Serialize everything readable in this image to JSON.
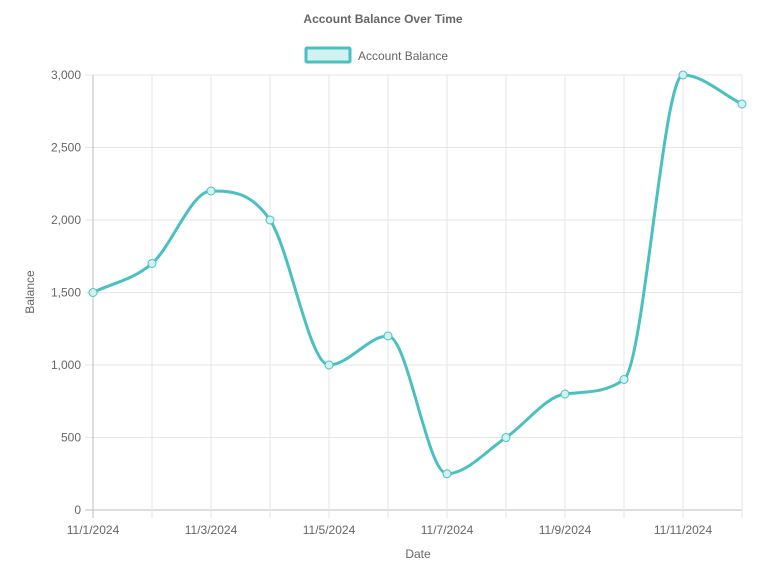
{
  "chart_data": {
    "type": "line",
    "title": "Account Balance Over Time",
    "xlabel": "Date",
    "ylabel": "Balance",
    "x": [
      "2024-11-01",
      "2024-11-02",
      "2024-11-03",
      "2024-11-04",
      "2024-11-05",
      "2024-11-06",
      "2024-11-07",
      "2024-11-08",
      "2024-11-09",
      "2024-11-10",
      "2024-11-11",
      "2024-11-12"
    ],
    "x_tick_labels": [
      "11/1/2024",
      "11/3/2024",
      "11/5/2024",
      "11/7/2024",
      "11/9/2024",
      "11/11/2024"
    ],
    "ylim": [
      0,
      3000
    ],
    "y_ticks": [
      0,
      500,
      1000,
      1500,
      2000,
      2500,
      3000
    ],
    "y_tick_labels": [
      "0",
      "500",
      "1,000",
      "1,500",
      "2,000",
      "2,500",
      "3,000"
    ],
    "grid": true,
    "legend_position": "top",
    "series": [
      {
        "name": "Account Balance",
        "values": [
          1500,
          1700,
          2200,
          2000,
          1000,
          1200,
          250,
          500,
          800,
          900,
          3000,
          2800
        ],
        "color": "#4bc0c0",
        "fill": "#d2f1f1"
      }
    ]
  }
}
